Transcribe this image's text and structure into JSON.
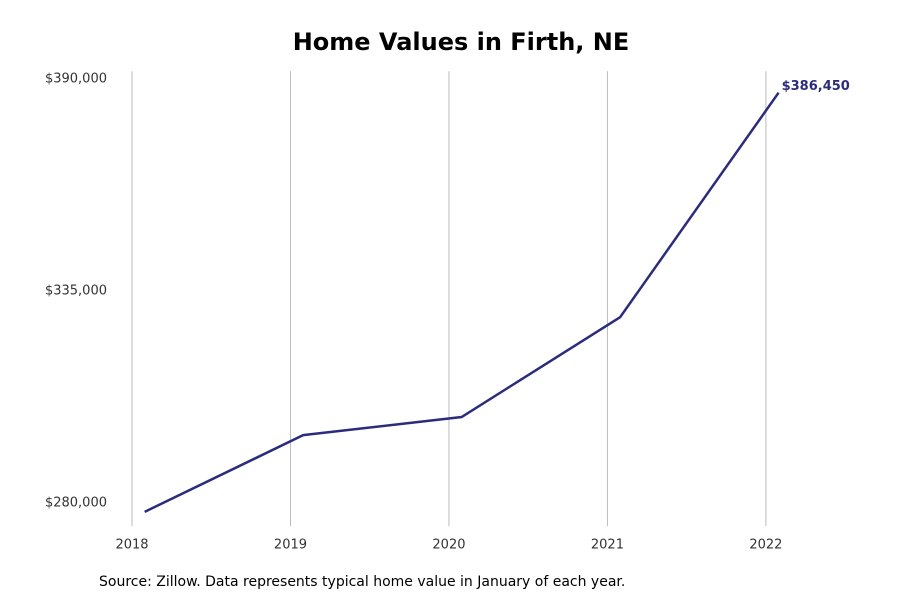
{
  "chart_data": {
    "type": "line",
    "title": "Home Values in Firth, NE",
    "source": "Source: Zillow. Data represents typical home value in January of each year.",
    "x": [
      2018.08,
      2019.08,
      2020.08,
      2021.08,
      2022.08
    ],
    "series": [
      {
        "name": "Home value",
        "color": "#2b2d7c",
        "values": [
          277700,
          297600,
          302300,
          328200,
          386450
        ],
        "value_labels": [
          null,
          null,
          null,
          null,
          "$386,450"
        ]
      }
    ],
    "xlim": [
      2017.8,
      2022.6
    ],
    "xticks": [
      2018,
      2019,
      2020,
      2021,
      2022
    ],
    "ylim": [
      274000,
      392000
    ],
    "yticks": [
      {
        "value": 280000,
        "label": "$280,000"
      },
      {
        "value": 335000,
        "label": "$335,000"
      },
      {
        "value": 390000,
        "label": "$390,000"
      }
    ],
    "grid": "x"
  }
}
